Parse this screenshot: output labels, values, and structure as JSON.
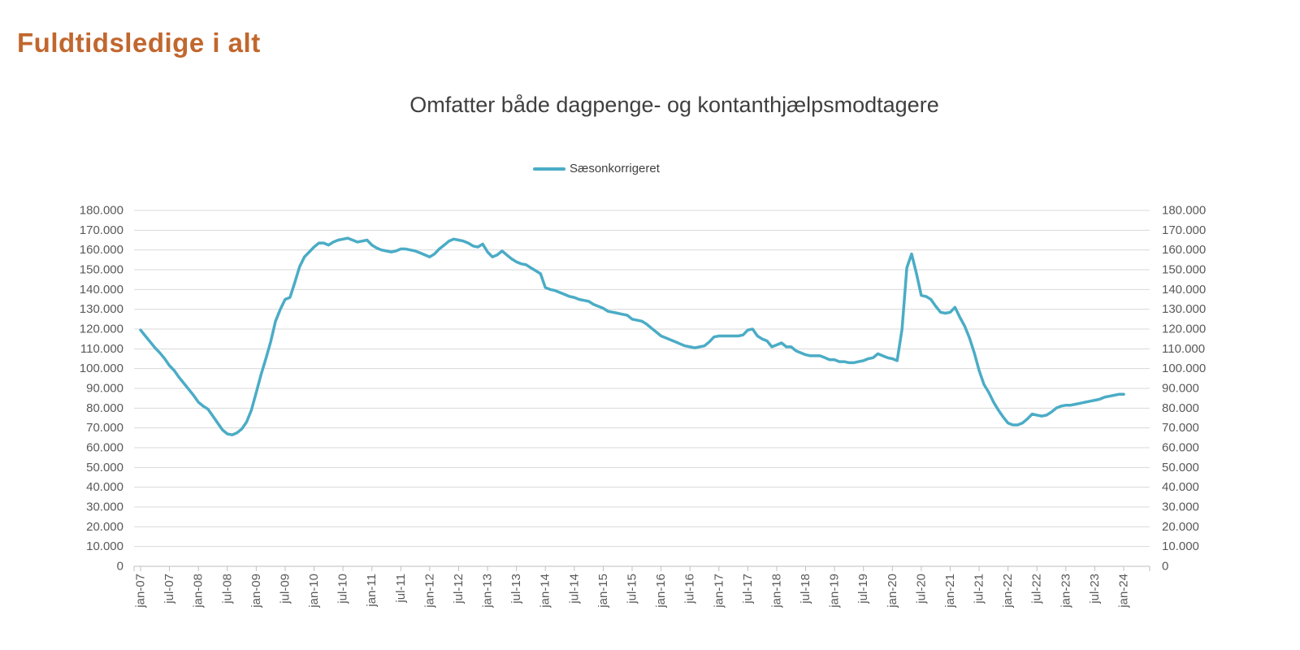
{
  "page": {
    "title": "Fuldtidsledige i alt"
  },
  "chart": {
    "subtitle": "Omfatter både dagpenge- og kontanthjælpsmodtagere",
    "legend": {
      "label": "Sæsonkorrigeret"
    },
    "colors": {
      "title": "#C1672E",
      "line": "#4BACC6",
      "subtitle_text": "#3F3F3F",
      "axis_text": "#595959",
      "gridline": "#D9D9D9",
      "axis_line": "#BFBFBF"
    }
  },
  "chart_data": {
    "type": "line",
    "title": "Omfatter både dagpenge- og kontanthjælpsmodtagere",
    "legend_position": "top-center",
    "grid": "horizontal",
    "series_name": "Sæsonkorrigeret",
    "frequency": "monthly",
    "x_start": "jan-07",
    "x_end": "jan-24",
    "ylim": [
      0,
      180000
    ],
    "y_tick_step": 10000,
    "y_tick_labels": [
      "0",
      "10.000",
      "20.000",
      "30.000",
      "40.000",
      "50.000",
      "60.000",
      "70.000",
      "80.000",
      "90.000",
      "100.000",
      "110.000",
      "120.000",
      "130.000",
      "140.000",
      "150.000",
      "160.000",
      "170.000",
      "180.000"
    ],
    "x_tick_labels": [
      "jan-07",
      "jul-07",
      "jan-08",
      "jul-08",
      "jan-09",
      "jul-09",
      "jan-10",
      "jul-10",
      "jan-11",
      "jul-11",
      "jan-12",
      "jul-12",
      "jan-13",
      "jul-13",
      "jan-14",
      "jul-14",
      "jan-15",
      "jul-15",
      "jan-16",
      "jul-16",
      "jan-17",
      "jul-17",
      "jan-18",
      "jul-18",
      "jan-19",
      "jul-19",
      "jan-20",
      "jul-20",
      "jan-21",
      "jul-21",
      "jan-22",
      "jul-22",
      "jan-23",
      "jul-23",
      "jan-24"
    ],
    "values": [
      119500,
      116500,
      113500,
      110500,
      108000,
      105000,
      101500,
      99000,
      95500,
      92500,
      89500,
      86500,
      83000,
      81000,
      79500,
      76000,
      72500,
      69000,
      67000,
      66500,
      67500,
      69500,
      73000,
      79000,
      88000,
      97000,
      105000,
      113500,
      124000,
      130000,
      135000,
      136000,
      143500,
      151500,
      156500,
      159000,
      161500,
      163500,
      163500,
      162500,
      164000,
      165000,
      165500,
      166000,
      165000,
      164000,
      164500,
      165000,
      162500,
      161000,
      160000,
      159500,
      159000,
      159500,
      160500,
      160500,
      160000,
      159500,
      158500,
      157500,
      156500,
      158000,
      160500,
      162500,
      164500,
      165500,
      165000,
      164500,
      163500,
      162000,
      161500,
      163000,
      159000,
      156500,
      157500,
      159500,
      157500,
      155500,
      154000,
      153000,
      152500,
      151000,
      149500,
      148000,
      141000,
      140000,
      139500,
      138500,
      137500,
      136500,
      136000,
      135000,
      134500,
      134000,
      132500,
      131500,
      130500,
      129000,
      128500,
      128000,
      127500,
      127000,
      125000,
      124500,
      124000,
      122500,
      120500,
      118500,
      116500,
      115500,
      114500,
      113500,
      112500,
      111500,
      111000,
      110500,
      111000,
      111500,
      113500,
      116000,
      116500,
      116500,
      116500,
      116500,
      116500,
      117000,
      119500,
      120000,
      116500,
      115000,
      114000,
      111000,
      112000,
      113000,
      111000,
      111000,
      109000,
      108000,
      107000,
      106500,
      106500,
      106500,
      105500,
      104500,
      104500,
      103500,
      103500,
      103000,
      103000,
      103500,
      104000,
      105000,
      105500,
      107500,
      106500,
      105500,
      105000,
      104000,
      120000,
      151000,
      158000,
      148000,
      137000,
      136500,
      135000,
      131500,
      128500,
      128000,
      128500,
      131000,
      126000,
      121500,
      115500,
      108000,
      99000,
      92000,
      88000,
      83000,
      79000,
      75500,
      72500,
      71500,
      71500,
      72500,
      74500,
      77000,
      76500,
      76000,
      76500,
      78000,
      80000,
      81000,
      81500,
      81500,
      82000,
      82500,
      83000,
      83500,
      84000,
      84500,
      85500,
      86000,
      86500,
      87000,
      87000
    ]
  }
}
